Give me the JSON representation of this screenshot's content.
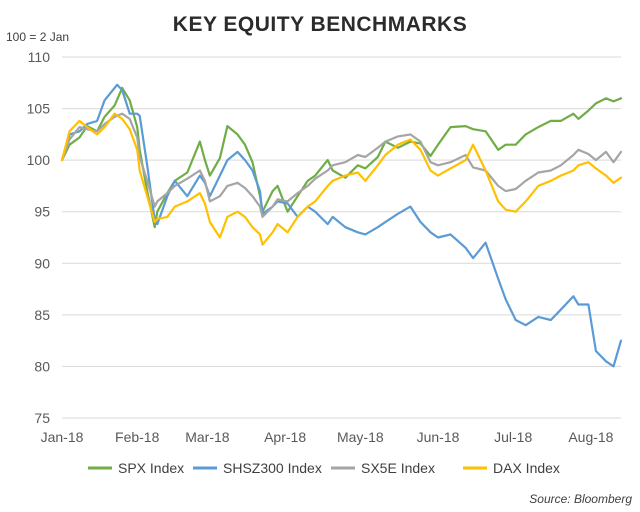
{
  "chart_data": {
    "type": "line",
    "title": "KEY EQUITY BENCHMARKS",
    "unit_label": "100 = 2 Jan",
    "source": "Source: Bloomberg",
    "ylim": [
      75,
      110
    ],
    "yticks": [
      75,
      80,
      85,
      90,
      95,
      100,
      105,
      110
    ],
    "xlim": [
      "2018-01-02",
      "2018-08-13"
    ],
    "xticks": [
      {
        "date": "2018-01-02",
        "label": "Jan-18"
      },
      {
        "date": "2018-02-01",
        "label": "Feb-18"
      },
      {
        "date": "2018-03-01",
        "label": "Mar-18"
      },
      {
        "date": "2018-04-01",
        "label": "Apr-18"
      },
      {
        "date": "2018-05-01",
        "label": "May-18"
      },
      {
        "date": "2018-06-01",
        "label": "Jun-18"
      },
      {
        "date": "2018-07-01",
        "label": "Jul-18"
      },
      {
        "date": "2018-08-01",
        "label": "Aug-18"
      }
    ],
    "grid": "horizontal",
    "legend_position": "bottom",
    "series": [
      {
        "name": "SPX Index",
        "color": "#70ad47",
        "points": [
          [
            "2018-01-02",
            100
          ],
          [
            "2018-01-05",
            101.5
          ],
          [
            "2018-01-09",
            102.2
          ],
          [
            "2018-01-12",
            103.3
          ],
          [
            "2018-01-16",
            102.8
          ],
          [
            "2018-01-19",
            104.2
          ],
          [
            "2018-01-23",
            105.3
          ],
          [
            "2018-01-26",
            107.0
          ],
          [
            "2018-01-29",
            105.8
          ],
          [
            "2018-02-01",
            103.2
          ],
          [
            "2018-02-02",
            101.0
          ],
          [
            "2018-02-05",
            97.0
          ],
          [
            "2018-02-08",
            93.5
          ],
          [
            "2018-02-09",
            95.0
          ],
          [
            "2018-02-13",
            96.8
          ],
          [
            "2018-02-16",
            98.0
          ],
          [
            "2018-02-21",
            98.8
          ],
          [
            "2018-02-26",
            101.8
          ],
          [
            "2018-02-28",
            100.0
          ],
          [
            "2018-03-02",
            98.5
          ],
          [
            "2018-03-06",
            100.2
          ],
          [
            "2018-03-09",
            103.3
          ],
          [
            "2018-03-13",
            102.5
          ],
          [
            "2018-03-16",
            101.5
          ],
          [
            "2018-03-19",
            99.8
          ],
          [
            "2018-03-22",
            96.5
          ],
          [
            "2018-03-23",
            95.0
          ],
          [
            "2018-03-27",
            97.0
          ],
          [
            "2018-03-29",
            97.5
          ],
          [
            "2018-04-02",
            95.0
          ],
          [
            "2018-04-06",
            96.5
          ],
          [
            "2018-04-10",
            98.0
          ],
          [
            "2018-04-13",
            98.5
          ],
          [
            "2018-04-18",
            100.0
          ],
          [
            "2018-04-20",
            99.0
          ],
          [
            "2018-04-25",
            98.3
          ],
          [
            "2018-04-30",
            99.5
          ],
          [
            "2018-05-03",
            99.2
          ],
          [
            "2018-05-08",
            100.3
          ],
          [
            "2018-05-11",
            101.8
          ],
          [
            "2018-05-16",
            101.2
          ],
          [
            "2018-05-21",
            101.8
          ],
          [
            "2018-05-25",
            101.6
          ],
          [
            "2018-05-29",
            100.4
          ],
          [
            "2018-06-01",
            101.5
          ],
          [
            "2018-06-06",
            103.2
          ],
          [
            "2018-06-12",
            103.3
          ],
          [
            "2018-06-15",
            103.0
          ],
          [
            "2018-06-20",
            102.8
          ],
          [
            "2018-06-25",
            101.0
          ],
          [
            "2018-06-28",
            101.5
          ],
          [
            "2018-07-02",
            101.5
          ],
          [
            "2018-07-06",
            102.5
          ],
          [
            "2018-07-11",
            103.2
          ],
          [
            "2018-07-16",
            103.8
          ],
          [
            "2018-07-20",
            103.8
          ],
          [
            "2018-07-25",
            104.5
          ],
          [
            "2018-07-27",
            104.0
          ],
          [
            "2018-07-31",
            104.8
          ],
          [
            "2018-08-03",
            105.5
          ],
          [
            "2018-08-07",
            106.0
          ],
          [
            "2018-08-10",
            105.7
          ],
          [
            "2018-08-13",
            106.0
          ]
        ]
      },
      {
        "name": "SHSZ300 Index",
        "color": "#5b9bd5",
        "points": [
          [
            "2018-01-02",
            100
          ],
          [
            "2018-01-05",
            102.5
          ],
          [
            "2018-01-09",
            102.8
          ],
          [
            "2018-01-12",
            103.5
          ],
          [
            "2018-01-16",
            103.8
          ],
          [
            "2018-01-19",
            105.8
          ],
          [
            "2018-01-23",
            107.0
          ],
          [
            "2018-01-24",
            107.3
          ],
          [
            "2018-01-26",
            106.8
          ],
          [
            "2018-01-29",
            104.5
          ],
          [
            "2018-02-01",
            104.5
          ],
          [
            "2018-02-02",
            104.3
          ],
          [
            "2018-02-05",
            99.5
          ],
          [
            "2018-02-08",
            94.2
          ],
          [
            "2018-02-09",
            93.8
          ],
          [
            "2018-02-13",
            96.5
          ],
          [
            "2018-02-16",
            98.0
          ],
          [
            "2018-02-21",
            96.5
          ],
          [
            "2018-02-26",
            98.5
          ],
          [
            "2018-02-28",
            97.8
          ],
          [
            "2018-03-02",
            96.5
          ],
          [
            "2018-03-06",
            98.5
          ],
          [
            "2018-03-09",
            100.0
          ],
          [
            "2018-03-13",
            100.8
          ],
          [
            "2018-03-16",
            100.0
          ],
          [
            "2018-03-19",
            99.0
          ],
          [
            "2018-03-22",
            97.0
          ],
          [
            "2018-03-23",
            94.8
          ],
          [
            "2018-03-27",
            95.5
          ],
          [
            "2018-03-29",
            96.0
          ],
          [
            "2018-04-02",
            95.8
          ],
          [
            "2018-04-06",
            94.5
          ],
          [
            "2018-04-10",
            95.5
          ],
          [
            "2018-04-13",
            95.0
          ],
          [
            "2018-04-18",
            93.8
          ],
          [
            "2018-04-20",
            94.5
          ],
          [
            "2018-04-25",
            93.5
          ],
          [
            "2018-04-30",
            93.0
          ],
          [
            "2018-05-03",
            92.8
          ],
          [
            "2018-05-08",
            93.5
          ],
          [
            "2018-05-11",
            94.0
          ],
          [
            "2018-05-16",
            94.8
          ],
          [
            "2018-05-21",
            95.5
          ],
          [
            "2018-05-25",
            94.0
          ],
          [
            "2018-05-29",
            93.0
          ],
          [
            "2018-06-01",
            92.5
          ],
          [
            "2018-06-06",
            92.8
          ],
          [
            "2018-06-12",
            91.5
          ],
          [
            "2018-06-15",
            90.5
          ],
          [
            "2018-06-20",
            92.0
          ],
          [
            "2018-06-25",
            88.5
          ],
          [
            "2018-06-28",
            86.5
          ],
          [
            "2018-07-02",
            84.5
          ],
          [
            "2018-07-06",
            84.0
          ],
          [
            "2018-07-11",
            84.8
          ],
          [
            "2018-07-16",
            84.5
          ],
          [
            "2018-07-20",
            85.5
          ],
          [
            "2018-07-25",
            86.8
          ],
          [
            "2018-07-27",
            86.0
          ],
          [
            "2018-07-31",
            86.0
          ],
          [
            "2018-08-03",
            81.5
          ],
          [
            "2018-08-07",
            80.5
          ],
          [
            "2018-08-10",
            80.0
          ],
          [
            "2018-08-13",
            82.5
          ]
        ]
      },
      {
        "name": "SX5E Index",
        "color": "#a5a5a5",
        "points": [
          [
            "2018-01-02",
            100
          ],
          [
            "2018-01-05",
            102.0
          ],
          [
            "2018-01-09",
            103.2
          ],
          [
            "2018-01-12",
            103.0
          ],
          [
            "2018-01-16",
            102.8
          ],
          [
            "2018-01-19",
            103.5
          ],
          [
            "2018-01-23",
            104.2
          ],
          [
            "2018-01-26",
            104.5
          ],
          [
            "2018-01-29",
            104.0
          ],
          [
            "2018-02-01",
            102.2
          ],
          [
            "2018-02-02",
            100.3
          ],
          [
            "2018-02-05",
            98.0
          ],
          [
            "2018-02-08",
            95.5
          ],
          [
            "2018-02-09",
            96.0
          ],
          [
            "2018-02-13",
            96.8
          ],
          [
            "2018-02-16",
            97.5
          ],
          [
            "2018-02-21",
            98.2
          ],
          [
            "2018-02-26",
            99.0
          ],
          [
            "2018-02-28",
            98.0
          ],
          [
            "2018-03-02",
            96.0
          ],
          [
            "2018-03-06",
            96.5
          ],
          [
            "2018-03-09",
            97.5
          ],
          [
            "2018-03-13",
            97.8
          ],
          [
            "2018-03-16",
            97.3
          ],
          [
            "2018-03-19",
            96.5
          ],
          [
            "2018-03-22",
            95.5
          ],
          [
            "2018-03-23",
            94.5
          ],
          [
            "2018-03-27",
            95.5
          ],
          [
            "2018-03-29",
            96.2
          ],
          [
            "2018-04-02",
            96.0
          ],
          [
            "2018-04-06",
            96.8
          ],
          [
            "2018-04-10",
            97.5
          ],
          [
            "2018-04-13",
            98.2
          ],
          [
            "2018-04-18",
            99.0
          ],
          [
            "2018-04-20",
            99.5
          ],
          [
            "2018-04-25",
            99.8
          ],
          [
            "2018-04-30",
            100.5
          ],
          [
            "2018-05-03",
            100.3
          ],
          [
            "2018-05-08",
            101.2
          ],
          [
            "2018-05-11",
            101.8
          ],
          [
            "2018-05-16",
            102.3
          ],
          [
            "2018-05-21",
            102.5
          ],
          [
            "2018-05-25",
            101.8
          ],
          [
            "2018-05-29",
            99.8
          ],
          [
            "2018-06-01",
            99.5
          ],
          [
            "2018-06-06",
            99.8
          ],
          [
            "2018-06-12",
            100.5
          ],
          [
            "2018-06-15",
            99.3
          ],
          [
            "2018-06-20",
            99.0
          ],
          [
            "2018-06-25",
            97.5
          ],
          [
            "2018-06-28",
            97.0
          ],
          [
            "2018-07-02",
            97.2
          ],
          [
            "2018-07-06",
            98.0
          ],
          [
            "2018-07-11",
            98.8
          ],
          [
            "2018-07-16",
            99.0
          ],
          [
            "2018-07-20",
            99.5
          ],
          [
            "2018-07-25",
            100.5
          ],
          [
            "2018-07-27",
            101.0
          ],
          [
            "2018-07-31",
            100.6
          ],
          [
            "2018-08-03",
            100.0
          ],
          [
            "2018-08-07",
            100.8
          ],
          [
            "2018-08-10",
            99.8
          ],
          [
            "2018-08-13",
            100.8
          ]
        ]
      },
      {
        "name": "DAX Index",
        "color": "#ffc000",
        "points": [
          [
            "2018-01-02",
            100
          ],
          [
            "2018-01-05",
            102.8
          ],
          [
            "2018-01-09",
            103.8
          ],
          [
            "2018-01-12",
            103.2
          ],
          [
            "2018-01-16",
            102.5
          ],
          [
            "2018-01-19",
            103.2
          ],
          [
            "2018-01-23",
            104.5
          ],
          [
            "2018-01-26",
            104.0
          ],
          [
            "2018-01-29",
            103.0
          ],
          [
            "2018-02-01",
            101.0
          ],
          [
            "2018-02-02",
            99.0
          ],
          [
            "2018-02-05",
            96.5
          ],
          [
            "2018-02-08",
            94.0
          ],
          [
            "2018-02-09",
            94.3
          ],
          [
            "2018-02-13",
            94.5
          ],
          [
            "2018-02-16",
            95.5
          ],
          [
            "2018-02-21",
            96.0
          ],
          [
            "2018-02-26",
            96.8
          ],
          [
            "2018-02-28",
            95.8
          ],
          [
            "2018-03-02",
            94.0
          ],
          [
            "2018-03-06",
            92.5
          ],
          [
            "2018-03-09",
            94.5
          ],
          [
            "2018-03-13",
            95.0
          ],
          [
            "2018-03-16",
            94.5
          ],
          [
            "2018-03-19",
            93.5
          ],
          [
            "2018-03-22",
            92.8
          ],
          [
            "2018-03-23",
            91.8
          ],
          [
            "2018-03-27",
            93.0
          ],
          [
            "2018-03-29",
            93.8
          ],
          [
            "2018-04-02",
            93.0
          ],
          [
            "2018-04-06",
            94.5
          ],
          [
            "2018-04-10",
            95.5
          ],
          [
            "2018-04-13",
            96.0
          ],
          [
            "2018-04-18",
            97.5
          ],
          [
            "2018-04-20",
            98.0
          ],
          [
            "2018-04-25",
            98.5
          ],
          [
            "2018-04-30",
            98.8
          ],
          [
            "2018-05-03",
            98.0
          ],
          [
            "2018-05-08",
            99.5
          ],
          [
            "2018-05-11",
            100.5
          ],
          [
            "2018-05-16",
            101.5
          ],
          [
            "2018-05-21",
            102.0
          ],
          [
            "2018-05-25",
            101.0
          ],
          [
            "2018-05-29",
            99.0
          ],
          [
            "2018-06-01",
            98.5
          ],
          [
            "2018-06-06",
            99.2
          ],
          [
            "2018-06-12",
            100.0
          ],
          [
            "2018-06-15",
            101.5
          ],
          [
            "2018-06-20",
            99.0
          ],
          [
            "2018-06-25",
            96.0
          ],
          [
            "2018-06-28",
            95.2
          ],
          [
            "2018-07-02",
            95.0
          ],
          [
            "2018-07-06",
            96.0
          ],
          [
            "2018-07-11",
            97.5
          ],
          [
            "2018-07-16",
            98.0
          ],
          [
            "2018-07-20",
            98.5
          ],
          [
            "2018-07-25",
            99.0
          ],
          [
            "2018-07-27",
            99.5
          ],
          [
            "2018-07-31",
            99.8
          ],
          [
            "2018-08-03",
            99.2
          ],
          [
            "2018-08-07",
            98.5
          ],
          [
            "2018-08-10",
            97.8
          ],
          [
            "2018-08-13",
            98.3
          ]
        ]
      }
    ]
  }
}
